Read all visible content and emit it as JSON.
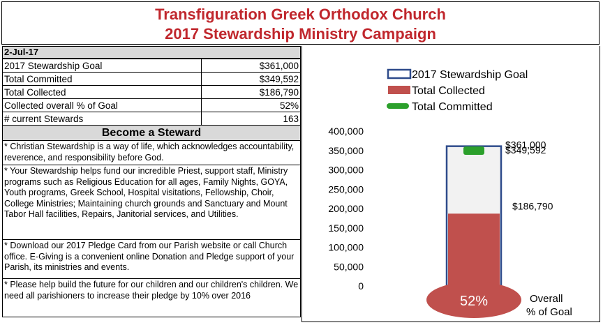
{
  "header": {
    "title_line1": "Transfiguration Greek Orthodox Church",
    "title_line2": "2017 Stewardship Ministry Campaign"
  },
  "summary": {
    "date": "2-Jul-17",
    "rows": [
      {
        "label": "2017 Stewardship Goal",
        "value": "$361,000"
      },
      {
        "label": "Total Committed",
        "value": "$349,592"
      },
      {
        "label": "Total Collected",
        "value": "$186,790"
      },
      {
        "label": "Collected overall % of Goal",
        "value": "52%"
      },
      {
        "label": "# current Stewards",
        "value": "163"
      }
    ]
  },
  "steward": {
    "heading": "Become a Steward",
    "paragraphs": [
      "* Christian Stewardship is a way of life, which acknowledges accountability, reverence, and responsibility before God.",
      "* Your Stewardship helps fund our incredible Priest, support staff, Ministry programs such as Religious Education for all ages, Family Nights, GOYA, Youth programs, Greek School, Hospital visitations, Fellowship, Choir, College Ministries; Maintaining church grounds and Sanctuary and Mount Tabor Hall facilities, Repairs, Janitorial services, and Utilities.",
      "* Download our 2017 Pledge Card from our Parish website or call Church office.  E-Giving is a convenient online Donation and Pledge support of your Parish, its ministries and events.",
      "* Please help build the future for our children and our children's children. We need all parishioners to increase their pledge by 10% over 2016"
    ]
  },
  "chart_data": {
    "type": "bar",
    "title": "",
    "xlabel": "",
    "ylabel": "",
    "ylim": [
      0,
      400000
    ],
    "yticks": [
      0,
      50000,
      100000,
      150000,
      200000,
      250000,
      300000,
      350000,
      400000
    ],
    "ytick_labels": [
      "0",
      "50,000",
      "100,000",
      "150,000",
      "200,000",
      "250,000",
      "300,000",
      "350,000",
      "400,000"
    ],
    "series": [
      {
        "name": "2017 Stewardship Goal",
        "value": 361000,
        "label": "$361,000",
        "color": "#2e4b8b"
      },
      {
        "name": "Total Collected",
        "value": 186790,
        "label": "$186,790",
        "color": "#c0504d"
      },
      {
        "name": "Total Committed",
        "value": 349592,
        "label": "$349,592",
        "color": "#2ca02c"
      }
    ],
    "legend": [
      "2017 Stewardship Goal",
      "Total Collected",
      "Total Committed"
    ],
    "legend_position": "top",
    "bulb_label": "52%",
    "overall_label_line1": "Overall",
    "overall_label_line2": "% of Goal"
  }
}
